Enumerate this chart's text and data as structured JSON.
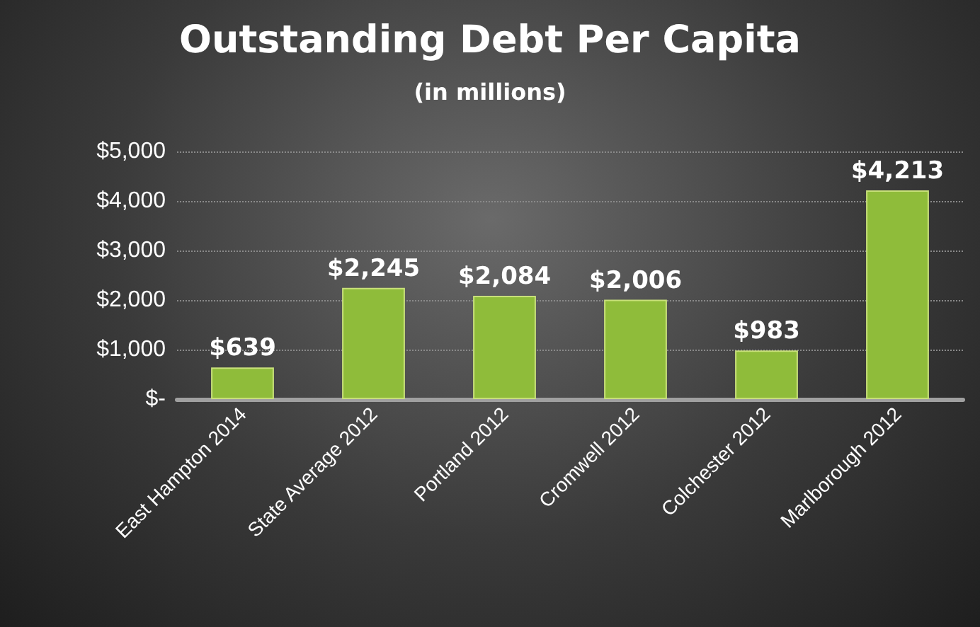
{
  "chart_data": {
    "type": "bar",
    "title": "Outstanding Debt Per Capita",
    "subtitle": "(in millions)",
    "categories": [
      "East Hampton 2014",
      "State Average 2012",
      "Portland 2012",
      "Cromwell 2012",
      "Colchester 2012",
      "Marlborough 2012"
    ],
    "values": [
      639,
      2245,
      2084,
      2006,
      983,
      4213
    ],
    "value_labels": [
      "$639",
      "$2,245",
      "$2,084",
      "$2,006",
      "$983",
      "$4,213"
    ],
    "color": "#8fbc3a",
    "ylim": [
      0,
      5000
    ],
    "yticks": [
      {
        "value": 0,
        "label": "$-"
      },
      {
        "value": 1000,
        "label": "$1,000"
      },
      {
        "value": 2000,
        "label": "$2,000"
      },
      {
        "value": 3000,
        "label": "$3,000"
      },
      {
        "value": 4000,
        "label": "$4,000"
      },
      {
        "value": 5000,
        "label": "$5,000"
      }
    ],
    "grid": "y"
  }
}
